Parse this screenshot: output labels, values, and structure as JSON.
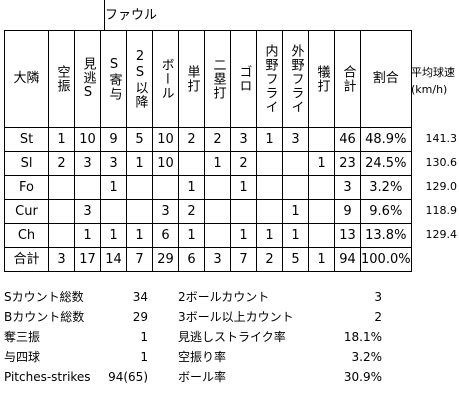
{
  "foul_label": "ファウル",
  "headers": [
    "大隣",
    "空振",
    "見逃S",
    "S寄与",
    "2S以降",
    "ボール",
    "単打",
    "二塁打",
    "ゴロ",
    "内野フライ",
    "外野フライ",
    "犠打",
    "合計",
    "割合"
  ],
  "speed_header": [
    "平均球速",
    "(km/h)"
  ],
  "rows": [
    {
      "pitch": "St",
      "cells": [
        "1",
        "10",
        "9",
        "5",
        "10",
        "2",
        "2",
        "3",
        "1",
        "3",
        "",
        "46",
        "48.9%"
      ],
      "speed": "141.3"
    },
    {
      "pitch": "Sl",
      "cells": [
        "2",
        "3",
        "3",
        "1",
        "10",
        "",
        "1",
        "2",
        "",
        "",
        "1",
        "23",
        "24.5%"
      ],
      "speed": "130.6"
    },
    {
      "pitch": "Fo",
      "cells": [
        "",
        "",
        "1",
        "",
        "",
        "1",
        "",
        "1",
        "",
        "",
        "",
        "3",
        "3.2%"
      ],
      "speed": "129.0"
    },
    {
      "pitch": "Cur",
      "cells": [
        "",
        "3",
        "",
        "",
        "3",
        "2",
        "",
        "",
        "",
        "1",
        "",
        "9",
        "9.6%"
      ],
      "speed": "118.9"
    },
    {
      "pitch": "Ch",
      "cells": [
        "",
        "1",
        "1",
        "1",
        "6",
        "1",
        "",
        "1",
        "1",
        "1",
        "",
        "13",
        "13.8%"
      ],
      "speed": "129.4"
    },
    {
      "pitch": "合計",
      "cells": [
        "3",
        "17",
        "14",
        "7",
        "29",
        "6",
        "3",
        "7",
        "2",
        "5",
        "1",
        "94",
        "100.0%"
      ],
      "speed": ""
    }
  ],
  "summary": [
    {
      "l1": "Sカウント総数",
      "v1": "34",
      "l2": "2ボールカウント",
      "v2": "3"
    },
    {
      "l1": "Bカウント総数",
      "v1": "29",
      "l2": "3ボール以上カウント",
      "v2": "2"
    },
    {
      "l1": "奪三振",
      "v1": "1",
      "l2": "見逃しストライク率",
      "v2": "18.1%"
    },
    {
      "l1": "与四球",
      "v1": "1",
      "l2": "空振り率",
      "v2": "3.2%"
    },
    {
      "l1": "Pitches-strikes",
      "v1": "94(65)",
      "l2": "ボール率",
      "v2": "30.9%"
    }
  ]
}
